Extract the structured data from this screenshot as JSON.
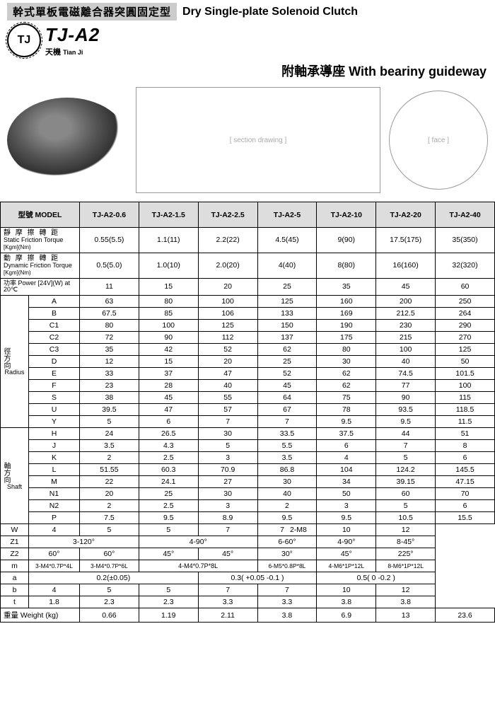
{
  "header": {
    "title_cn": "幹式單板電磁離合器突圓固定型",
    "title_en": "Dry Single-plate Solenoid Clutch",
    "model_code": "TJ-A2",
    "brand_cn": "天機",
    "brand_en": "Tian Ji",
    "logo_text": "TJ",
    "subtitle_cn": "附軸承導座",
    "subtitle_en": "With  beariny guideway"
  },
  "table": {
    "model_label": "型號 MODEL",
    "models": [
      "TJ-A2-0.6",
      "TJ-A2-1.5",
      "TJ-A2-2.5",
      "TJ-A2-5",
      "TJ-A2-10",
      "TJ-A2-20",
      "TJ-A2-40"
    ],
    "static_label_cn": "靜 摩 擦 轉 距",
    "static_label_en": "Static Friction Torque",
    "static_unit": "[Kgm](Nm)",
    "static": [
      "0.55(5.5)",
      "1.1(11)",
      "2.2(22)",
      "4.5(45)",
      "9(90)",
      "17.5(175)",
      "35(350)"
    ],
    "dynamic_label_cn": "動 摩 擦 轉 距",
    "dynamic_label_en": "Dynamic Friction Torque",
    "dynamic_unit": "[Kgm](Nm)",
    "dynamic": [
      "0.5(5.0)",
      "1.0(10)",
      "2.0(20)",
      "4(40)",
      "8(80)",
      "16(160)",
      "32(320)"
    ],
    "power_label": "功率 Power [24V](W) at 20℃",
    "power": [
      "11",
      "15",
      "20",
      "25",
      "35",
      "45",
      "60"
    ],
    "radius_label_cn": "徑方向",
    "radius_label_en": "Radius",
    "shaft_label_cn": "軸方向",
    "shaft_label_en": "Shaft",
    "radius_rows": [
      {
        "p": "A",
        "v": [
          "63",
          "80",
          "100",
          "125",
          "160",
          "200",
          "250"
        ]
      },
      {
        "p": "B",
        "v": [
          "67.5",
          "85",
          "106",
          "133",
          "169",
          "212.5",
          "264"
        ]
      },
      {
        "p": "C1",
        "v": [
          "80",
          "100",
          "125",
          "150",
          "190",
          "230",
          "290"
        ]
      },
      {
        "p": "C2",
        "v": [
          "72",
          "90",
          "112",
          "137",
          "175",
          "215",
          "270"
        ]
      },
      {
        "p": "C3",
        "v": [
          "35",
          "42",
          "52",
          "62",
          "80",
          "100",
          "125"
        ]
      },
      {
        "p": "D",
        "v": [
          "12",
          "15",
          "20",
          "25",
          "30",
          "40",
          "50"
        ]
      },
      {
        "p": "E",
        "v": [
          "33",
          "37",
          "47",
          "52",
          "62",
          "74.5",
          "101.5"
        ]
      },
      {
        "p": "F",
        "v": [
          "23",
          "28",
          "40",
          "45",
          "62",
          "77",
          "100"
        ]
      },
      {
        "p": "S",
        "v": [
          "38",
          "45",
          "55",
          "64",
          "75",
          "90",
          "115"
        ]
      },
      {
        "p": "U",
        "v": [
          "39.5",
          "47",
          "57",
          "67",
          "78",
          "93.5",
          "118.5"
        ]
      },
      {
        "p": "Y",
        "v": [
          "5",
          "6",
          "7",
          "7",
          "9.5",
          "9.5",
          "11.5"
        ]
      }
    ],
    "shaft_rows": [
      {
        "p": "H",
        "v": [
          "24",
          "26.5",
          "30",
          "33.5",
          "37.5",
          "44",
          "51"
        ]
      },
      {
        "p": "J",
        "v": [
          "3.5",
          "4.3",
          "5",
          "5.5",
          "6",
          "7",
          "8"
        ]
      },
      {
        "p": "K",
        "v": [
          "2",
          "2.5",
          "3",
          "3.5",
          "4",
          "5",
          "6"
        ]
      },
      {
        "p": "L",
        "v": [
          "51.55",
          "60.3",
          "70.9",
          "86.8",
          "104",
          "124.2",
          "145.5"
        ]
      },
      {
        "p": "M",
        "v": [
          "22",
          "24.1",
          "27",
          "30",
          "34",
          "39.15",
          "47.15"
        ]
      },
      {
        "p": "N1",
        "v": [
          "20",
          "25",
          "30",
          "40",
          "50",
          "60",
          "70"
        ]
      },
      {
        "p": "N2",
        "v": [
          "2",
          "2.5",
          "3",
          "2",
          "3",
          "5",
          "6"
        ]
      },
      {
        "p": "P",
        "v": [
          "7.5",
          "9.5",
          "8.9",
          "9.5",
          "9.5",
          "10.5",
          "15.5"
        ]
      }
    ],
    "w_row": {
      "p": "W",
      "first4": [
        "4",
        "5",
        "5",
        "7"
      ],
      "fifth_left": "7",
      "fifth_right": "2-M8",
      "last2": [
        "10",
        "12"
      ]
    },
    "z1_row": {
      "p": "Z1",
      "g1": "3-120°",
      "g2": "4-90°",
      "g3": "6-60°",
      "g4": "4-90°",
      "g5": "8-45°"
    },
    "z2_row": {
      "p": "Z2",
      "v": [
        "60°",
        "60°",
        "45°",
        "45°",
        "30°",
        "45°",
        "225°"
      ]
    },
    "m_row": {
      "p": "m",
      "v1": "3-M4*0.7P*4L",
      "v2": "3-M4*0.7P*6L",
      "v3": "4-M4*0.7P*8L",
      "v4": "6-M5*0.8P*8L",
      "v5": "4-M6*1P*12L",
      "v6": "8-M6*1P*12L"
    },
    "a_row": {
      "p": "a",
      "g1": "0.2(±0.05)",
      "g2": "0.3( +0.05 -0.1 )",
      "g3": "0.5( 0 -0.2 )"
    },
    "b_row": {
      "p": "b",
      "v": [
        "4",
        "5",
        "5",
        "7",
        "7",
        "10",
        "12"
      ]
    },
    "t_row": {
      "p": "t",
      "v": [
        "1.8",
        "2.3",
        "2.3",
        "3.3",
        "3.3",
        "3.8",
        "3.8"
      ]
    },
    "weight_label": "重量 Weight     (kg)",
    "weight": [
      "0.66",
      "1.19",
      "2.11",
      "3.8",
      "6.9",
      "13",
      "23.6"
    ]
  },
  "colors": {
    "header_bg": "#cccccc",
    "model_bg": "#dddddd",
    "border": "#000000"
  }
}
